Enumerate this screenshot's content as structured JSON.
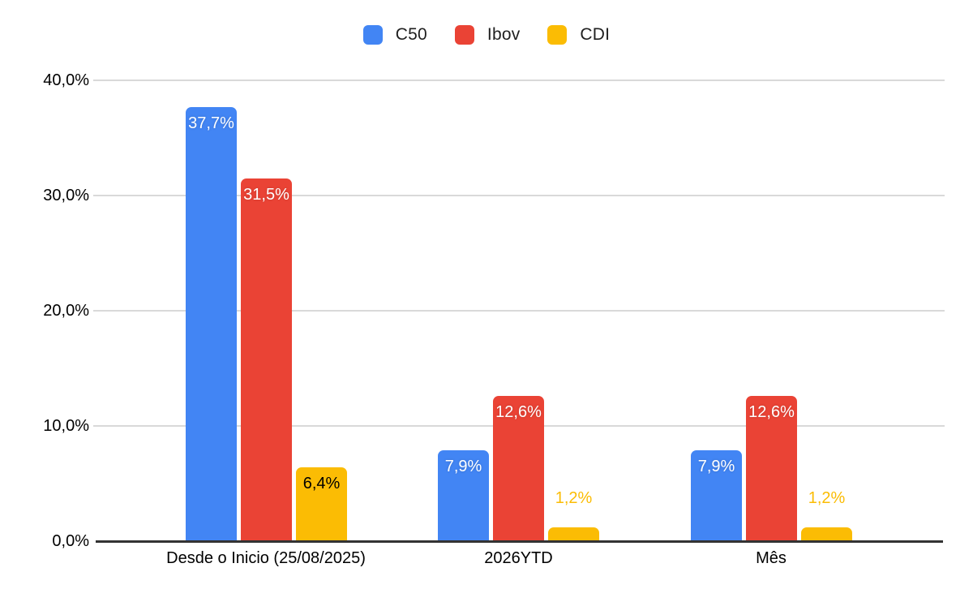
{
  "colors": {
    "background": "#ffffff",
    "gridline": "#d9d9d9",
    "axis_line": "#333333",
    "axis_text": "#000000",
    "legend_text": "#1f1f1f"
  },
  "chart_data": {
    "type": "bar",
    "title": "",
    "legend_position": "top",
    "grid": true,
    "categories": [
      "Desde o Inicio (25/08/2025)",
      "2026YTD",
      "Mês"
    ],
    "series": [
      {
        "name": "C50",
        "color": "#4285F4",
        "label_text_color": "#ffffff",
        "values": [
          37.7,
          7.9,
          7.9
        ],
        "labels": [
          "37,7%",
          "7,9%",
          "7,9%"
        ]
      },
      {
        "name": "Ibov",
        "color": "#EA4335",
        "label_text_color": "#ffffff",
        "values": [
          31.5,
          12.6,
          12.6
        ],
        "labels": [
          "31,5%",
          "12,6%",
          "12,6%"
        ]
      },
      {
        "name": "CDI",
        "color": "#FBBC04",
        "label_text_color": "#000000",
        "values": [
          6.4,
          1.2,
          1.2
        ],
        "labels": [
          "6,4%",
          "1,2%",
          "1,2%"
        ]
      }
    ],
    "y_axis": {
      "min": 0,
      "max": 40,
      "ticks": [
        0,
        10,
        20,
        30,
        40
      ],
      "tick_labels": [
        "0,0%",
        "10,0%",
        "20,0%",
        "30,0%",
        "40,0%"
      ]
    }
  }
}
